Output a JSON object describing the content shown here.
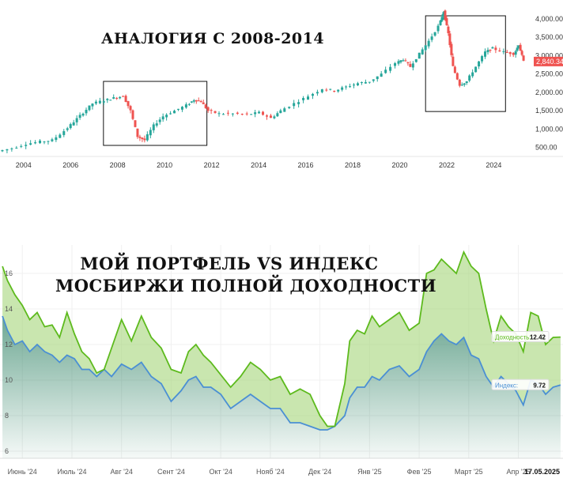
{
  "colors": {
    "up": "#26a69a",
    "down": "#ef5350",
    "current_price_bg": "#ef5350",
    "portfolio_line": "#5dba1d",
    "portfolio_fill": "#a5d67a",
    "index_line": "#4a8fd4",
    "index_fill": "#3c8a6e"
  },
  "chart_data": [
    {
      "type": "candlestick",
      "title": "АНАЛОГИЯ С 2008-2014",
      "x_ticks": [
        "2004",
        "2006",
        "2008",
        "2010",
        "2012",
        "2014",
        "2016",
        "2018",
        "2020",
        "2022",
        "2024"
      ],
      "y_ticks": [
        "4,000.00",
        "3,500.00",
        "3,000.00",
        "2,500.00",
        "2,000.00",
        "1,500.00",
        "1,000.00",
        "500.00"
      ],
      "y_tick_values": [
        4000,
        3500,
        3000,
        2500,
        2000,
        1500,
        1000,
        500
      ],
      "current_price_label": "2,840.34",
      "current_price": 2840.34,
      "x_range": [
        2003.0,
        2025.6
      ],
      "ylim": [
        300,
        4300
      ],
      "highlight_ranges": [
        {
          "x": [
            2007.4,
            2011.8
          ],
          "y": [
            0,
            2300
          ]
        },
        {
          "x": [
            2021.1,
            2024.5
          ],
          "y": [
            1480,
            4350
          ]
        }
      ],
      "series": [
        {
          "name": "",
          "x": [
            2003.0,
            2003.6,
            2004.2,
            2004.8,
            2005.3,
            2005.8,
            2006.2,
            2006.6,
            2007.0,
            2007.5,
            2007.9,
            2008.3,
            2008.6,
            2008.9,
            2009.2,
            2009.6,
            2010.0,
            2010.5,
            2011.0,
            2011.3,
            2011.6,
            2011.9,
            2012.4,
            2013.0,
            2013.6,
            2014.1,
            2014.6,
            2015.0,
            2015.6,
            2016.2,
            2016.8,
            2017.3,
            2017.8,
            2018.3,
            2018.8,
            2019.3,
            2019.9,
            2020.2,
            2020.5,
            2020.9,
            2021.3,
            2021.7,
            2021.9,
            2022.1,
            2022.3,
            2022.6,
            2022.9,
            2023.3,
            2023.7,
            2024.0,
            2024.5,
            2024.9,
            2025.1,
            2025.3
          ],
          "values": [
            400,
            480,
            600,
            660,
            700,
            950,
            1200,
            1450,
            1700,
            1780,
            1850,
            1900,
            1500,
            800,
            700,
            1100,
            1350,
            1500,
            1650,
            1800,
            1750,
            1500,
            1420,
            1420,
            1400,
            1450,
            1300,
            1500,
            1700,
            1900,
            2100,
            2050,
            2150,
            2250,
            2300,
            2500,
            2800,
            2900,
            2700,
            3050,
            3400,
            3800,
            4200,
            3600,
            2700,
            2200,
            2300,
            2700,
            3100,
            3200,
            3100,
            3050,
            3300,
            2840
          ]
        }
      ]
    },
    {
      "type": "area",
      "title": "МОЙ ПОРТФЕЛЬ VS ИНДЕКС МОСБИРЖИ ПОЛНОЙ ДОХОДНОСТИ",
      "title_lines": [
        "МОЙ ПОРТФЕЛЬ VS ИНДЕКС",
        "МОСБИРЖИ ПОЛНОЙ ДОХОДНОСТИ"
      ],
      "x_ticks": [
        "Июнь '24",
        "Июль '24",
        "Авг '24",
        "Сент '24",
        "Окт '24",
        "Нояб '24",
        "Дек '24",
        "Янв '25",
        "Фев '25",
        "Март '25",
        "Апр '25"
      ],
      "x_tick_values": [
        1.0,
        2.0,
        3.0,
        4.0,
        5.0,
        6.0,
        7.0,
        8.0,
        9.0,
        10.0,
        11.0
      ],
      "x_end_label": "17.05.2025",
      "y_ticks": [
        "16",
        "14",
        "12",
        "10",
        "8",
        "6"
      ],
      "y_tick_values": [
        16,
        14,
        12,
        10,
        8,
        6
      ],
      "ylim": [
        5.6,
        17.6
      ],
      "x_range": [
        0.55,
        11.9
      ],
      "series": [
        {
          "name": "Доходность",
          "last_value": "12.42",
          "x": [
            0.6,
            0.7,
            0.85,
            1.0,
            1.15,
            1.3,
            1.45,
            1.6,
            1.75,
            1.9,
            2.05,
            2.2,
            2.35,
            2.5,
            2.65,
            2.8,
            3.0,
            3.2,
            3.4,
            3.6,
            3.8,
            4.0,
            4.2,
            4.35,
            4.5,
            4.65,
            4.8,
            5.0,
            5.2,
            5.4,
            5.6,
            5.8,
            6.0,
            6.2,
            6.4,
            6.6,
            6.8,
            7.0,
            7.15,
            7.3,
            7.5,
            7.6,
            7.75,
            7.9,
            8.05,
            8.2,
            8.4,
            8.6,
            8.8,
            9.0,
            9.15,
            9.3,
            9.45,
            9.6,
            9.75,
            9.9,
            10.05,
            10.2,
            10.35,
            10.5,
            10.65,
            10.8,
            10.95,
            11.1,
            11.25,
            11.4,
            11.55,
            11.7,
            11.85
          ],
          "values": [
            16.4,
            15.6,
            14.8,
            14.2,
            13.4,
            13.8,
            13.0,
            13.1,
            12.4,
            13.8,
            12.6,
            11.6,
            11.2,
            10.4,
            10.6,
            11.8,
            13.4,
            12.2,
            13.6,
            12.4,
            11.8,
            10.6,
            10.4,
            11.6,
            12.0,
            11.4,
            11.0,
            10.3,
            9.6,
            10.2,
            11.0,
            10.6,
            10.0,
            10.2,
            9.2,
            9.5,
            9.2,
            8.0,
            7.4,
            7.4,
            9.8,
            12.2,
            12.8,
            12.6,
            13.6,
            13.0,
            13.4,
            13.8,
            12.8,
            13.2,
            16.0,
            16.2,
            16.8,
            16.4,
            16.0,
            17.2,
            16.4,
            16.0,
            14.0,
            12.2,
            13.6,
            13.0,
            12.6,
            11.6,
            13.8,
            13.6,
            12.0,
            12.4,
            12.42
          ]
        },
        {
          "name": "Индекс",
          "last_value": "9.72",
          "x": [
            0.6,
            0.7,
            0.85,
            1.0,
            1.15,
            1.3,
            1.45,
            1.6,
            1.75,
            1.9,
            2.05,
            2.2,
            2.35,
            2.5,
            2.65,
            2.8,
            3.0,
            3.2,
            3.4,
            3.6,
            3.8,
            4.0,
            4.2,
            4.35,
            4.5,
            4.65,
            4.8,
            5.0,
            5.2,
            5.4,
            5.6,
            5.8,
            6.0,
            6.2,
            6.4,
            6.6,
            6.8,
            7.0,
            7.15,
            7.3,
            7.5,
            7.6,
            7.75,
            7.9,
            8.05,
            8.2,
            8.4,
            8.6,
            8.8,
            9.0,
            9.15,
            9.3,
            9.45,
            9.6,
            9.75,
            9.9,
            10.05,
            10.2,
            10.35,
            10.5,
            10.65,
            10.8,
            10.95,
            11.1,
            11.25,
            11.4,
            11.55,
            11.7,
            11.85
          ],
          "values": [
            13.6,
            12.8,
            12.0,
            12.2,
            11.6,
            12.0,
            11.6,
            11.4,
            11.0,
            11.4,
            11.2,
            10.6,
            10.6,
            10.2,
            10.6,
            10.2,
            10.9,
            10.6,
            11.0,
            10.2,
            9.8,
            8.8,
            9.4,
            10.0,
            10.2,
            9.6,
            9.6,
            9.2,
            8.4,
            8.8,
            9.2,
            8.8,
            8.4,
            8.4,
            7.6,
            7.6,
            7.4,
            7.2,
            7.2,
            7.4,
            8.0,
            9.0,
            9.6,
            9.6,
            10.2,
            10.0,
            10.6,
            10.8,
            10.2,
            10.6,
            11.6,
            12.2,
            12.6,
            12.2,
            12.0,
            12.4,
            11.4,
            11.2,
            10.2,
            9.6,
            10.2,
            9.8,
            9.4,
            8.6,
            10.0,
            9.8,
            9.2,
            9.6,
            9.72
          ]
        }
      ]
    }
  ]
}
